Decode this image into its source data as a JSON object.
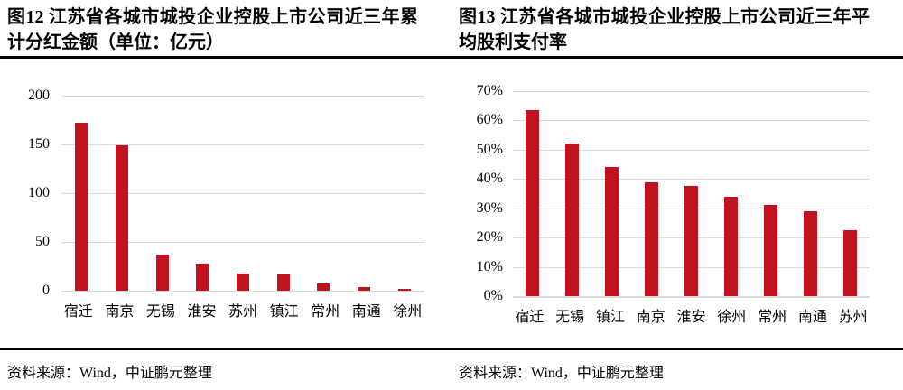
{
  "colors": {
    "bar": "#C2121E",
    "gridline": "#D9D9D9",
    "axis_line": "#D9D9D9",
    "rule": "#000000",
    "text": "#000000"
  },
  "panels": [
    {
      "source": "资料来源：Wind，中证鹏元整理"
    },
    {
      "source": "资料来源：Wind，中证鹏元整理"
    }
  ],
  "chart_data": [
    {
      "type": "bar",
      "title": "图12 江苏省各城市城投企业控股上市公司近三年累计分红金额（单位：亿元）",
      "categories": [
        "宿迁",
        "南京",
        "无锡",
        "淮安",
        "苏州",
        "镇江",
        "常州",
        "南通",
        "徐州"
      ],
      "values": [
        172,
        149,
        37,
        28,
        18,
        17,
        7,
        4,
        1.5
      ],
      "unit": "亿元",
      "ylim": [
        0,
        200
      ],
      "ytick_values": [
        0,
        50,
        100,
        150,
        200
      ],
      "ytick_labels": [
        "0",
        "50",
        "100",
        "150",
        "200"
      ],
      "grid": true,
      "legend": "none",
      "xlabel": "",
      "ylabel": ""
    },
    {
      "type": "bar",
      "title": "图13 江苏省各城市城投企业控股上市公司近三年平均股利支付率",
      "categories": [
        "宿迁",
        "无锡",
        "镇江",
        "南京",
        "淮安",
        "徐州",
        "常州",
        "南通",
        "苏州"
      ],
      "values": [
        63.5,
        52,
        44,
        39,
        37.5,
        34,
        31,
        29,
        22.5
      ],
      "unit": "%",
      "ylim": [
        0,
        70
      ],
      "ytick_values": [
        0,
        10,
        20,
        30,
        40,
        50,
        60,
        70
      ],
      "ytick_labels": [
        "0%",
        "10%",
        "20%",
        "30%",
        "40%",
        "50%",
        "60%",
        "70%"
      ],
      "grid": true,
      "legend": "none",
      "xlabel": "",
      "ylabel": ""
    }
  ]
}
